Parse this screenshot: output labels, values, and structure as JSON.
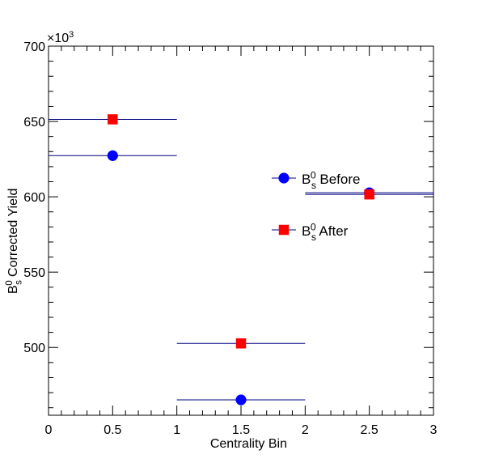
{
  "chart_data": {
    "type": "scatter",
    "xlabel": "Centrality Bin",
    "ylabel": {
      "base": "B",
      "sub": "s",
      "sup": "0",
      "text": " Corrected Yield"
    },
    "exponent_label": {
      "base": "×10",
      "sup": "3"
    },
    "xlim": [
      0,
      3
    ],
    "ylim": [
      455000,
      700000
    ],
    "x_ticks": [
      {
        "value": 0,
        "label": "0"
      },
      {
        "value": 0.5,
        "label": "0.5"
      },
      {
        "value": 1,
        "label": "1"
      },
      {
        "value": 1.5,
        "label": "1.5"
      },
      {
        "value": 2,
        "label": "2"
      },
      {
        "value": 2.5,
        "label": "2.5"
      },
      {
        "value": 3,
        "label": "3"
      }
    ],
    "y_ticks": [
      {
        "value": 500000,
        "label": "500"
      },
      {
        "value": 550000,
        "label": "550"
      },
      {
        "value": 600000,
        "label": "600"
      },
      {
        "value": 650000,
        "label": "650"
      },
      {
        "value": 700000,
        "label": "700"
      }
    ],
    "grid": false,
    "legend_position": "right-middle",
    "series": [
      {
        "name": "B_s^0 Before",
        "legend_label": {
          "base": "B",
          "sub": "s",
          "sup": "0",
          "text": " Before"
        },
        "marker": "circle",
        "color": "#0000ff",
        "error_color": "#000080",
        "points": [
          {
            "x": 0.5,
            "y": 627300,
            "xerr": 0.5
          },
          {
            "x": 1.5,
            "y": 465200,
            "xerr": 0.5
          },
          {
            "x": 2.5,
            "y": 602700,
            "xerr": 0.5
          }
        ]
      },
      {
        "name": "B_s^0 After",
        "legend_label": {
          "base": "B",
          "sub": "s",
          "sup": "0",
          "text": " After"
        },
        "marker": "square",
        "color": "#ff0000",
        "error_color": "#000080",
        "points": [
          {
            "x": 0.5,
            "y": 651400,
            "xerr": 0.5
          },
          {
            "x": 1.5,
            "y": 502700,
            "xerr": 0.5
          },
          {
            "x": 2.5,
            "y": 601600,
            "xerr": 0.5
          }
        ]
      }
    ]
  }
}
